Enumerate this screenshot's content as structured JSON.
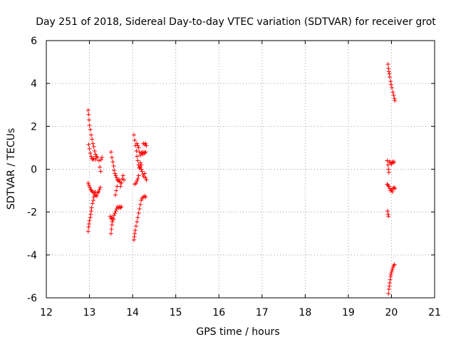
{
  "chart_data": {
    "type": "scatter",
    "title": "Day 251 of 2018, Sidereal Day-to-day VTEC variation (SDTVAR) for receiver grot",
    "xlabel": "GPS time / hours",
    "ylabel": "SDTVAR / TECUs",
    "xlim": [
      12,
      21
    ],
    "ylim": [
      -6,
      6
    ],
    "xticks": [
      "12",
      "13",
      "14",
      "15",
      "16",
      "17",
      "18",
      "19",
      "20",
      "21"
    ],
    "yticks": [
      "-6",
      "-4",
      "-2",
      "0",
      "2",
      "4",
      "6"
    ],
    "grid": true,
    "legend": "none",
    "marker": "+",
    "color": "#ff0000",
    "series": [
      {
        "name": "SDTVAR",
        "points": [
          [
            12.97,
            2.75
          ],
          [
            12.98,
            2.55
          ],
          [
            12.99,
            2.3
          ],
          [
            13.0,
            2.05
          ],
          [
            13.02,
            1.85
          ],
          [
            13.04,
            1.6
          ],
          [
            13.06,
            1.4
          ],
          [
            13.08,
            1.2
          ],
          [
            13.1,
            1.05
          ],
          [
            13.12,
            0.85
          ],
          [
            13.14,
            0.7
          ],
          [
            13.16,
            0.6
          ],
          [
            13.18,
            0.55
          ],
          [
            12.98,
            1.15
          ],
          [
            13.0,
            0.95
          ],
          [
            13.02,
            0.75
          ],
          [
            13.04,
            0.6
          ],
          [
            13.06,
            0.5
          ],
          [
            13.08,
            0.45
          ],
          [
            13.1,
            0.5
          ],
          [
            13.14,
            0.45
          ],
          [
            13.18,
            0.55
          ],
          [
            13.22,
            0.4
          ],
          [
            13.24,
            0.1
          ],
          [
            13.26,
            -0.1
          ],
          [
            13.27,
            0.45
          ],
          [
            13.29,
            0.55
          ],
          [
            12.97,
            -0.65
          ],
          [
            12.99,
            -0.75
          ],
          [
            13.01,
            -0.85
          ],
          [
            13.03,
            -0.95
          ],
          [
            13.05,
            -1.0
          ],
          [
            13.07,
            -1.05
          ],
          [
            13.1,
            -1.1
          ],
          [
            13.13,
            -1.05
          ],
          [
            13.15,
            -1.2
          ],
          [
            13.17,
            -1.25
          ],
          [
            13.19,
            -1.1
          ],
          [
            13.21,
            -1.05
          ],
          [
            13.23,
            -0.95
          ],
          [
            13.25,
            -0.85
          ],
          [
            12.97,
            -2.9
          ],
          [
            12.98,
            -2.7
          ],
          [
            12.99,
            -2.55
          ],
          [
            13.0,
            -2.4
          ],
          [
            13.02,
            -2.25
          ],
          [
            13.03,
            -2.1
          ],
          [
            13.04,
            -1.95
          ],
          [
            13.05,
            -1.8
          ],
          [
            13.07,
            -1.6
          ],
          [
            13.09,
            -1.45
          ],
          [
            13.1,
            -1.3
          ],
          [
            13.12,
            -1.2
          ],
          [
            13.5,
            0.8
          ],
          [
            13.52,
            0.55
          ],
          [
            13.54,
            0.35
          ],
          [
            13.56,
            0.15
          ],
          [
            13.57,
            -0.05
          ],
          [
            13.59,
            -0.2
          ],
          [
            13.61,
            -0.3
          ],
          [
            13.63,
            -0.4
          ],
          [
            13.65,
            -0.5
          ],
          [
            13.67,
            -0.55
          ],
          [
            13.69,
            -0.5
          ],
          [
            13.71,
            -0.6
          ],
          [
            13.72,
            -0.8
          ],
          [
            13.74,
            -0.65
          ],
          [
            13.76,
            -0.45
          ],
          [
            13.78,
            -0.3
          ],
          [
            13.8,
            -0.5
          ],
          [
            13.5,
            -3.0
          ],
          [
            13.51,
            -2.8
          ],
          [
            13.52,
            -2.6
          ],
          [
            13.53,
            -2.45
          ],
          [
            13.55,
            -2.3
          ],
          [
            13.57,
            -2.15
          ],
          [
            13.59,
            -2.05
          ],
          [
            13.61,
            -1.95
          ],
          [
            13.63,
            -1.85
          ],
          [
            13.65,
            -1.75
          ],
          [
            13.68,
            -1.8
          ],
          [
            13.7,
            -1.75
          ],
          [
            13.72,
            -1.8
          ],
          [
            13.74,
            -1.75
          ],
          [
            13.48,
            -2.2
          ],
          [
            13.5,
            -2.3
          ],
          [
            13.52,
            -2.25
          ],
          [
            13.55,
            -2.35
          ],
          [
            13.6,
            -1.2
          ],
          [
            13.62,
            -1.0
          ],
          [
            13.64,
            -0.8
          ],
          [
            14.03,
            1.6
          ],
          [
            14.05,
            1.35
          ],
          [
            14.07,
            1.1
          ],
          [
            14.09,
            0.85
          ],
          [
            14.1,
            0.6
          ],
          [
            14.12,
            0.4
          ],
          [
            14.14,
            0.2
          ],
          [
            14.16,
            0.05
          ],
          [
            14.18,
            0.1
          ],
          [
            14.2,
            0.0
          ],
          [
            14.22,
            -0.1
          ],
          [
            14.24,
            -0.25
          ],
          [
            14.26,
            -0.35
          ],
          [
            14.28,
            -0.2
          ],
          [
            14.3,
            -0.4
          ],
          [
            14.32,
            -0.5
          ],
          [
            14.1,
            1.2
          ],
          [
            14.12,
            1.1
          ],
          [
            14.14,
            1.0
          ],
          [
            14.16,
            0.8
          ],
          [
            14.18,
            0.65
          ],
          [
            14.2,
            0.75
          ],
          [
            14.22,
            0.8
          ],
          [
            14.24,
            0.7
          ],
          [
            14.26,
            0.8
          ],
          [
            14.28,
            0.75
          ],
          [
            14.3,
            0.8
          ],
          [
            14.25,
            1.2
          ],
          [
            14.28,
            1.15
          ],
          [
            14.3,
            1.2
          ],
          [
            14.32,
            1.1
          ],
          [
            14.05,
            -0.7
          ],
          [
            14.08,
            -0.65
          ],
          [
            14.1,
            -0.55
          ],
          [
            14.12,
            -0.45
          ],
          [
            14.14,
            -0.3
          ],
          [
            14.16,
            0.1
          ],
          [
            14.18,
            0.3
          ],
          [
            14.2,
            0.2
          ],
          [
            14.03,
            -3.3
          ],
          [
            14.04,
            -3.15
          ],
          [
            14.05,
            -3.0
          ],
          [
            14.06,
            -2.85
          ],
          [
            14.08,
            -2.65
          ],
          [
            14.1,
            -2.45
          ],
          [
            14.12,
            -2.25
          ],
          [
            14.14,
            -2.05
          ],
          [
            14.16,
            -1.85
          ],
          [
            14.18,
            -1.65
          ],
          [
            14.2,
            -1.45
          ],
          [
            14.22,
            -1.35
          ],
          [
            14.25,
            -1.3
          ],
          [
            14.28,
            -1.25
          ],
          [
            14.3,
            -1.3
          ],
          [
            19.92,
            4.9
          ],
          [
            19.93,
            4.7
          ],
          [
            19.94,
            4.55
          ],
          [
            19.95,
            4.45
          ],
          [
            19.96,
            4.3
          ],
          [
            19.98,
            4.1
          ],
          [
            19.99,
            3.95
          ],
          [
            20.01,
            3.8
          ],
          [
            20.03,
            3.6
          ],
          [
            20.05,
            3.45
          ],
          [
            20.07,
            3.3
          ],
          [
            20.08,
            3.2
          ],
          [
            19.9,
            0.4
          ],
          [
            19.92,
            0.2
          ],
          [
            19.93,
            0.0
          ],
          [
            19.94,
            -0.15
          ],
          [
            19.96,
            0.35
          ],
          [
            19.98,
            0.3
          ],
          [
            20.0,
            0.25
          ],
          [
            20.02,
            0.35
          ],
          [
            20.04,
            0.3
          ],
          [
            20.06,
            0.35
          ],
          [
            19.9,
            -0.7
          ],
          [
            19.92,
            -0.75
          ],
          [
            19.94,
            -0.8
          ],
          [
            19.96,
            -0.9
          ],
          [
            19.98,
            -1.0
          ],
          [
            20.0,
            -0.95
          ],
          [
            20.02,
            -1.05
          ],
          [
            20.04,
            -0.9
          ],
          [
            20.06,
            -0.85
          ],
          [
            20.08,
            -0.9
          ],
          [
            19.91,
            -1.95
          ],
          [
            19.92,
            -2.1
          ],
          [
            19.93,
            -2.2
          ],
          [
            19.93,
            -5.8
          ],
          [
            19.94,
            -5.6
          ],
          [
            19.95,
            -5.45
          ],
          [
            19.96,
            -5.3
          ],
          [
            19.97,
            -5.15
          ],
          [
            19.98,
            -5.0
          ],
          [
            19.99,
            -4.9
          ],
          [
            20.0,
            -4.8
          ],
          [
            20.02,
            -4.7
          ],
          [
            20.03,
            -4.6
          ],
          [
            20.05,
            -4.5
          ],
          [
            20.07,
            -4.45
          ]
        ]
      }
    ]
  }
}
